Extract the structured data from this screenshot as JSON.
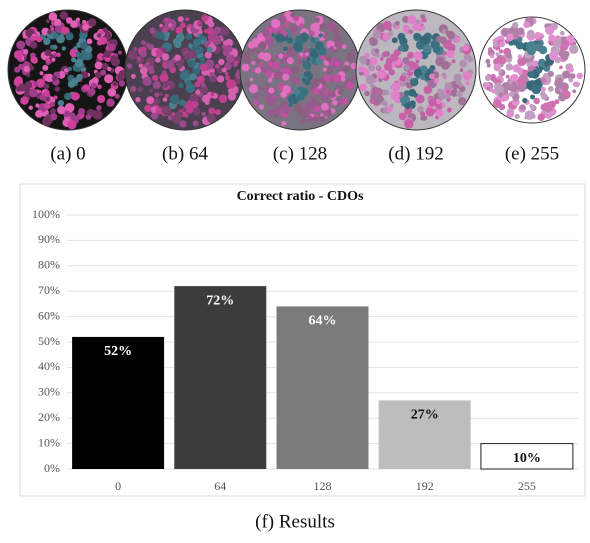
{
  "plates": [
    {
      "caption": "(a) 0"
    },
    {
      "caption": "(b) 64"
    },
    {
      "caption": "(c) 128"
    },
    {
      "caption": "(d) 192"
    },
    {
      "caption": "(e) 255"
    }
  ],
  "chart_data": {
    "type": "bar",
    "title": "Correct ratio - CDOs",
    "categories": [
      "0",
      "64",
      "128",
      "192",
      "255"
    ],
    "values": [
      52,
      72,
      64,
      27,
      10
    ],
    "value_labels": [
      "52%",
      "72%",
      "64%",
      "27%",
      "10%"
    ],
    "colors": [
      "#000000",
      "#3c3c3c",
      "#7b7b7b",
      "#bdbdbd",
      "#ffffff"
    ],
    "value_label_colors": [
      "#ffffff",
      "#ffffff",
      "#ffffff",
      "#111111",
      "#111111"
    ],
    "ylim": [
      0,
      100
    ],
    "yticks": [
      {
        "value": 0,
        "label": "0%"
      },
      {
        "value": 10,
        "label": "10%"
      },
      {
        "value": 20,
        "label": "20%"
      },
      {
        "value": 30,
        "label": "30%"
      },
      {
        "value": 40,
        "label": "40%"
      },
      {
        "value": 50,
        "label": "50%"
      },
      {
        "value": 60,
        "label": "60%"
      },
      {
        "value": 70,
        "label": "70%"
      },
      {
        "value": 80,
        "label": "80%"
      },
      {
        "value": 90,
        "label": "90%"
      },
      {
        "value": 100,
        "label": "100%"
      }
    ],
    "grid": true
  },
  "caption": "(f) Results"
}
